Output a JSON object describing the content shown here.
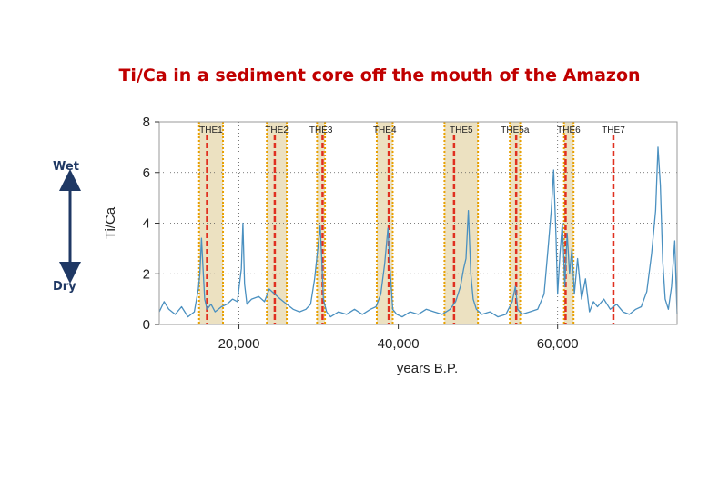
{
  "title": "Ti/Ca in a sediment core off the mouth of the Amazon",
  "annotations": {
    "wet": "Wet",
    "dry": "Dry"
  },
  "colors": {
    "title": "#c00000",
    "line": "#4a90c0",
    "band": "#e9dcb6",
    "band_border": "#e8a000",
    "event_line": "#e03020",
    "arrow": "#1f3864"
  },
  "chart_data": {
    "type": "line",
    "title": "Ti/Ca in a sediment core off the mouth of the Amazon",
    "xlabel": "years B.P.",
    "ylabel": "Ti/Ca",
    "xlim": [
      10000,
      75000
    ],
    "ylim": [
      0,
      8
    ],
    "xticks": [
      20000,
      40000,
      60000
    ],
    "xtick_labels": [
      "20,000",
      "40,000",
      "60,000"
    ],
    "yticks": [
      0,
      2,
      4,
      6,
      8
    ],
    "ytick_labels": [
      "0",
      "2",
      "4",
      "6",
      "8"
    ],
    "grid": "y dotted",
    "events": [
      {
        "label": "THE1",
        "band": [
          15000,
          18000
        ],
        "line": 16000
      },
      {
        "label": "THE2",
        "band": [
          23500,
          26000
        ],
        "line": 24500
      },
      {
        "label": "THE3",
        "band": [
          29800,
          30800
        ],
        "line": 30500
      },
      {
        "label": "THE4",
        "band": [
          37300,
          39300
        ],
        "line": 38800
      },
      {
        "label": "THE5",
        "band": [
          45800,
          50000
        ],
        "line": 47000
      },
      {
        "label": "THE5a",
        "band": [
          54000,
          55300
        ],
        "line": 54800
      },
      {
        "label": "THE6",
        "band": [
          60800,
          62000
        ],
        "line": 61000
      },
      {
        "label": "THE7",
        "band": null,
        "line": 67000
      }
    ],
    "vertical_dotted": [
      20000,
      60000
    ],
    "series": [
      {
        "x": [
          10000,
          10600,
          11200,
          12000,
          12800,
          13600,
          14400,
          14900,
          15100,
          15300,
          15500,
          15700,
          16000,
          16500,
          17000,
          17800,
          18500,
          19200,
          19800,
          20300,
          20500,
          20700,
          21000,
          21600,
          22500,
          23200,
          23800,
          24500,
          25200,
          26000,
          26800,
          27600,
          28400,
          29000,
          29500,
          29900,
          30200,
          30400,
          30600,
          31000,
          31500,
          32500,
          33500,
          34500,
          35500,
          36500,
          37200,
          37800,
          38300,
          38700,
          39000,
          39300,
          39800,
          40500,
          41500,
          42500,
          43500,
          44500,
          45500,
          46500,
          47200,
          47800,
          48200,
          48500,
          48800,
          49100,
          49400,
          49800,
          50500,
          51500,
          52500,
          53500,
          54300,
          54700,
          55000,
          55500,
          56500,
          57500,
          58300,
          58800,
          59200,
          59500,
          59800,
          60000,
          60300,
          60600,
          60900,
          61200,
          61500,
          61800,
          62100,
          62500,
          63000,
          63500,
          64000,
          64500,
          65000,
          65800,
          66600,
          67400,
          68200,
          69000,
          69800,
          70500,
          71200,
          71800,
          72300,
          72600,
          72900,
          73200,
          73500,
          73900,
          74300,
          74700,
          75000
        ],
        "y": [
          0.5,
          0.9,
          0.6,
          0.4,
          0.7,
          0.3,
          0.5,
          1.4,
          2.0,
          3.4,
          2.2,
          1.0,
          0.6,
          0.8,
          0.5,
          0.7,
          0.8,
          1.0,
          0.9,
          2.2,
          4.0,
          1.6,
          0.8,
          1.0,
          1.1,
          0.9,
          1.4,
          1.2,
          1.0,
          0.8,
          0.6,
          0.5,
          0.6,
          0.8,
          1.8,
          3.0,
          3.9,
          2.5,
          1.0,
          0.5,
          0.3,
          0.5,
          0.4,
          0.6,
          0.4,
          0.6,
          0.7,
          1.2,
          2.4,
          3.8,
          2.0,
          0.6,
          0.4,
          0.3,
          0.5,
          0.4,
          0.6,
          0.5,
          0.4,
          0.6,
          0.9,
          1.5,
          2.2,
          2.6,
          4.5,
          2.0,
          1.0,
          0.6,
          0.4,
          0.5,
          0.3,
          0.4,
          0.9,
          1.5,
          0.6,
          0.4,
          0.5,
          0.6,
          1.2,
          3.0,
          4.5,
          6.1,
          3.5,
          1.2,
          2.8,
          4.0,
          1.5,
          3.6,
          2.0,
          3.0,
          1.2,
          2.6,
          1.0,
          1.8,
          0.5,
          0.9,
          0.7,
          1.0,
          0.6,
          0.8,
          0.5,
          0.4,
          0.6,
          0.7,
          1.3,
          2.8,
          4.5,
          7.0,
          5.5,
          2.5,
          1.0,
          0.6,
          1.5,
          3.3,
          0.4
        ]
      }
    ]
  }
}
